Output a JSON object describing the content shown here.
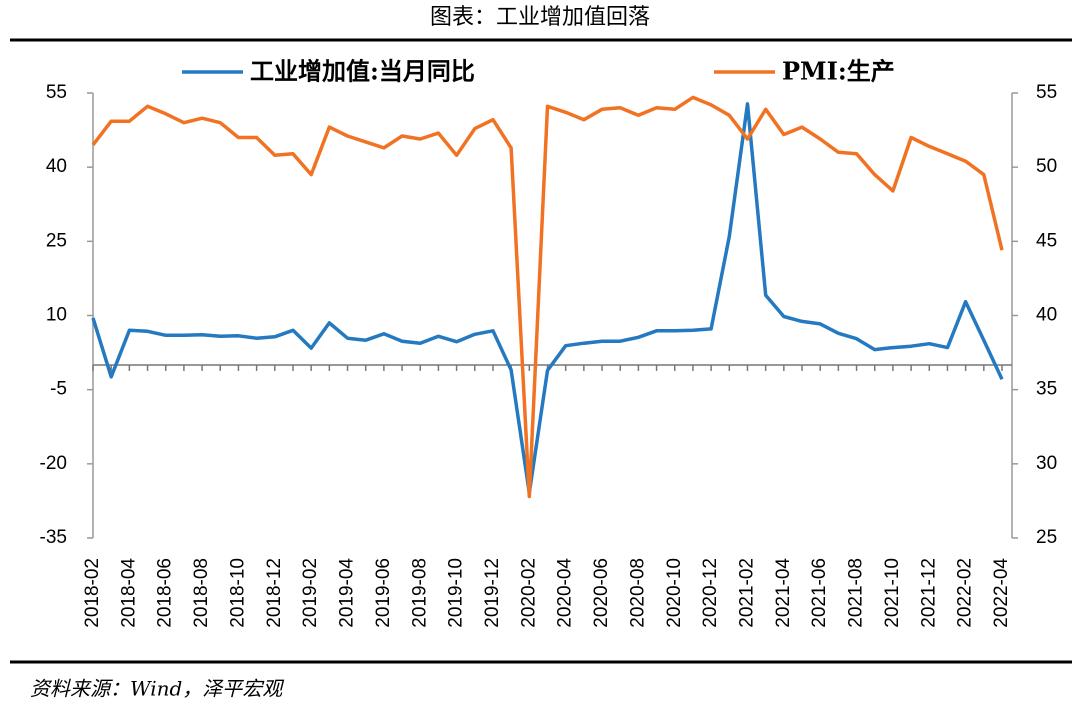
{
  "chart_data": {
    "type": "line",
    "title": "图表：工业增加值回落",
    "source": "资料来源：Wind，泽平宏观",
    "categories": [
      "2018-02",
      null,
      "2018-04",
      null,
      "2018-06",
      null,
      "2018-08",
      null,
      "2018-10",
      null,
      "2018-12",
      null,
      "2019-02",
      null,
      "2019-04",
      null,
      "2019-06",
      null,
      "2019-08",
      null,
      "2019-10",
      null,
      "2019-12",
      null,
      "2020-02",
      null,
      "2020-04",
      null,
      "2020-06",
      null,
      "2020-08",
      null,
      "2020-10",
      null,
      "2020-12",
      null,
      "2021-02",
      null,
      "2021-04",
      null,
      "2021-06",
      null,
      "2021-08",
      null,
      "2021-10",
      null,
      "2021-12",
      null,
      "2022-02",
      null,
      "2022-04"
    ],
    "series": [
      {
        "name": "工业增加值:当月同比",
        "color": "#2479c0",
        "values": [
          9.5,
          -2.4,
          7.0,
          6.8,
          6.0,
          6.0,
          6.1,
          5.8,
          5.9,
          5.4,
          5.7,
          7.0,
          3.4,
          8.5,
          5.4,
          5.0,
          6.3,
          4.8,
          4.4,
          5.8,
          4.7,
          6.2,
          6.9,
          -1.0,
          -25.9,
          -1.1,
          3.9,
          4.4,
          4.8,
          4.8,
          5.6,
          6.9,
          6.9,
          7.0,
          7.3,
          26.0,
          52.8,
          14.1,
          9.8,
          8.8,
          8.3,
          6.4,
          5.3,
          3.1,
          3.5,
          3.8,
          4.3,
          3.5,
          12.8,
          5.0,
          -2.9
        ]
      },
      {
        "name": "PMI:生产",
        "color": "#f07222",
        "axis": "y2",
        "values": [
          51.5,
          53.1,
          53.1,
          54.1,
          53.6,
          53.0,
          53.3,
          53.0,
          52.0,
          52.0,
          50.8,
          50.9,
          49.5,
          52.7,
          52.1,
          51.7,
          51.3,
          52.1,
          51.9,
          52.3,
          50.8,
          52.6,
          53.2,
          51.3,
          27.8,
          54.1,
          53.7,
          53.2,
          53.9,
          54.0,
          53.5,
          54.0,
          53.9,
          54.7,
          54.2,
          53.5,
          51.9,
          53.9,
          52.2,
          52.7,
          51.9,
          51.0,
          50.9,
          49.5,
          48.4,
          52.0,
          51.4,
          50.9,
          50.4,
          49.5,
          44.4
        ]
      }
    ],
    "ylim": [
      -35,
      55
    ],
    "yticks": [
      -35,
      -20,
      -5,
      10,
      25,
      40,
      55
    ],
    "y2lim": [
      25,
      55
    ],
    "y2ticks": [
      25,
      30,
      35,
      40,
      45,
      50,
      55
    ]
  }
}
